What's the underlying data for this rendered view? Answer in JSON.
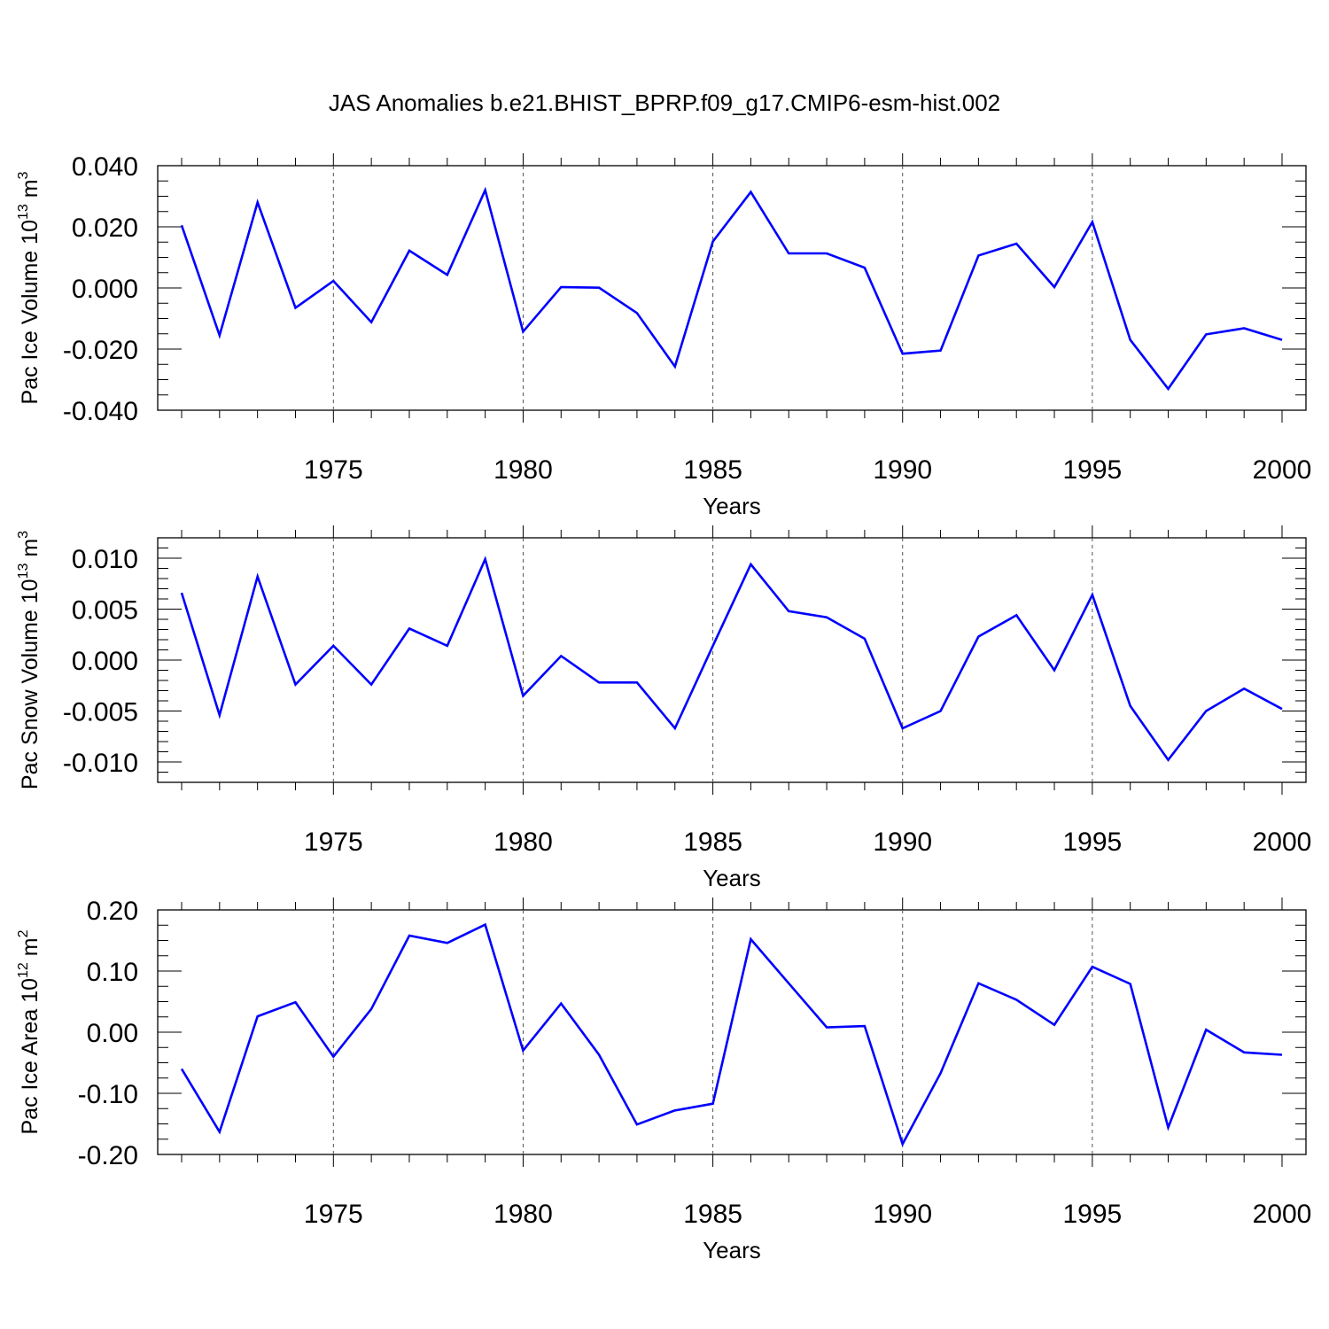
{
  "title": "JAS Anomalies b.e21.BHIST_BPRP.f09_g17.CMIP6-esm-hist.002",
  "colors": {
    "line": "#0000ff",
    "axis": "#000000",
    "grid": "#555555"
  },
  "chart_data": [
    {
      "type": "line",
      "ylabel": {
        "text": "Pac Ice Volume 10",
        "exp": "13",
        "unit": " m",
        "unit_exp": "3"
      },
      "xlabel": "Years",
      "xlim": [
        1971,
        2000
      ],
      "ylim": [
        -0.04,
        0.04
      ],
      "yticks": [
        -0.04,
        -0.02,
        0.0,
        0.02,
        0.04
      ],
      "ytick_labels": [
        "-0.040",
        "-0.020",
        "0.000",
        "0.020",
        "0.040"
      ],
      "yminor_step": 0.005,
      "xticks": [
        1975,
        1980,
        1985,
        1990,
        1995,
        2000
      ],
      "xtick_labels": [
        "1975",
        "1980",
        "1985",
        "1990",
        "1995",
        "2000"
      ],
      "x": [
        1971,
        1972,
        1973,
        1974,
        1975,
        1976,
        1977,
        1978,
        1979,
        1980,
        1981,
        1982,
        1983,
        1984,
        1985,
        1986,
        1987,
        1988,
        1989,
        1990,
        1991,
        1992,
        1993,
        1994,
        1995,
        1996,
        1997,
        1998,
        1999,
        2000
      ],
      "values": [
        0.0205,
        -0.0155,
        0.028,
        -0.0065,
        0.0023,
        -0.0112,
        0.0122,
        0.0043,
        0.032,
        -0.0143,
        0.0003,
        0.0001,
        -0.0082,
        -0.0257,
        0.0152,
        0.0314,
        0.0113,
        0.0113,
        0.0066,
        -0.0215,
        -0.0205,
        0.0106,
        0.0145,
        0.0003,
        0.0216,
        -0.017,
        -0.033,
        -0.0152,
        -0.0132,
        -0.017
      ]
    },
    {
      "type": "line",
      "ylabel": {
        "text": "Pac Snow Volume 10",
        "exp": "13",
        "unit": " m",
        "unit_exp": "3"
      },
      "xlabel": "Years",
      "xlim": [
        1971,
        2000
      ],
      "ylim": [
        -0.012,
        0.012
      ],
      "yticks": [
        -0.01,
        -0.005,
        0.0,
        0.005,
        0.01
      ],
      "ytick_labels": [
        "-0.010",
        "-0.005",
        "0.000",
        "0.005",
        "0.010"
      ],
      "yminor_step": 0.001,
      "xticks": [
        1975,
        1980,
        1985,
        1990,
        1995,
        2000
      ],
      "xtick_labels": [
        "1975",
        "1980",
        "1985",
        "1990",
        "1995",
        "2000"
      ],
      "x": [
        1971,
        1972,
        1973,
        1974,
        1975,
        1976,
        1977,
        1978,
        1979,
        1980,
        1981,
        1982,
        1983,
        1984,
        1985,
        1986,
        1987,
        1988,
        1989,
        1990,
        1991,
        1992,
        1993,
        1994,
        1995,
        1996,
        1997,
        1998,
        1999,
        2000
      ],
      "values": [
        0.0066,
        -0.0054,
        0.0082,
        -0.0024,
        0.0014,
        -0.0024,
        0.0031,
        0.0014,
        0.0099,
        -0.0035,
        0.0004,
        -0.0022,
        -0.0022,
        -0.0067,
        0.0014,
        0.0094,
        0.0048,
        0.0042,
        0.0021,
        -0.0067,
        -0.005,
        0.0023,
        0.0044,
        -0.001,
        0.0064,
        -0.0045,
        -0.0098,
        -0.005,
        -0.0028,
        -0.0048
      ]
    },
    {
      "type": "line",
      "ylabel": {
        "text": "Pac Ice Area 10",
        "exp": "12",
        "unit": " m",
        "unit_exp": "2"
      },
      "xlabel": "Years",
      "xlim": [
        1971,
        2000
      ],
      "ylim": [
        -0.2,
        0.2
      ],
      "yticks": [
        -0.2,
        -0.1,
        0.0,
        0.1,
        0.2
      ],
      "ytick_labels": [
        "-0.20",
        "-0.10",
        "0.00",
        "0.10",
        "0.20"
      ],
      "yminor_step": 0.025,
      "xticks": [
        1975,
        1980,
        1985,
        1990,
        1995,
        2000
      ],
      "xtick_labels": [
        "1975",
        "1980",
        "1985",
        "1990",
        "1995",
        "2000"
      ],
      "x": [
        1971,
        1972,
        1973,
        1974,
        1975,
        1976,
        1977,
        1978,
        1979,
        1980,
        1981,
        1982,
        1983,
        1984,
        1985,
        1986,
        1987,
        1988,
        1989,
        1990,
        1991,
        1992,
        1993,
        1994,
        1995,
        1996,
        1997,
        1998,
        1999,
        2000
      ],
      "values": [
        -0.06,
        -0.163,
        0.026,
        0.049,
        -0.04,
        0.038,
        0.158,
        0.146,
        0.176,
        -0.03,
        0.047,
        -0.037,
        -0.151,
        -0.128,
        -0.117,
        0.152,
        0.08,
        0.008,
        0.01,
        -0.183,
        -0.067,
        0.08,
        0.053,
        0.012,
        0.107,
        0.079,
        -0.156,
        0.004,
        -0.033,
        -0.037
      ]
    }
  ]
}
